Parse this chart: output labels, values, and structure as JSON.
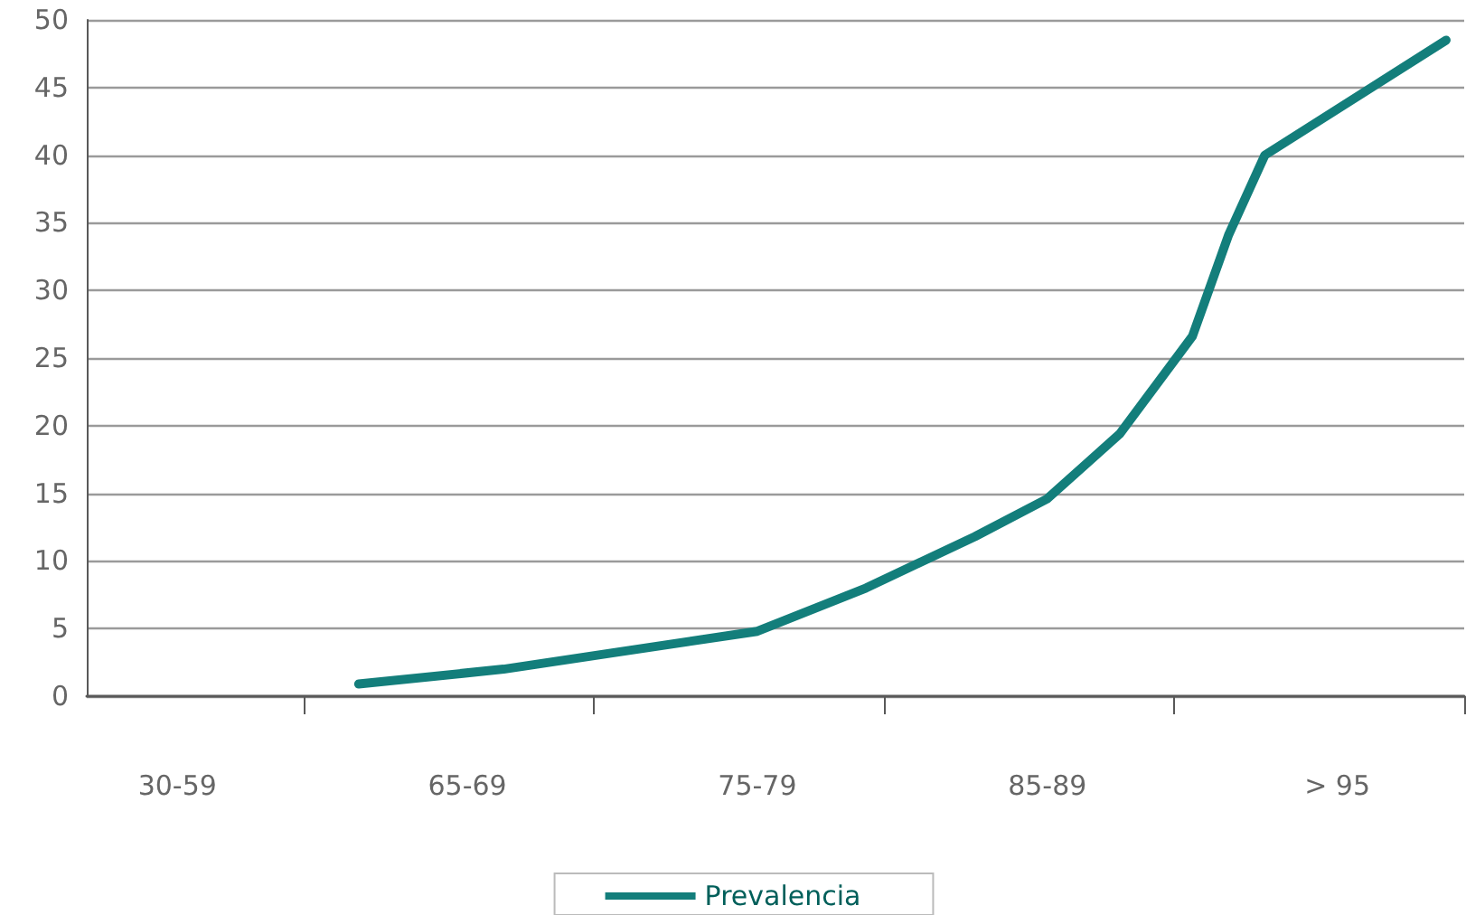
{
  "chart_data": {
    "type": "line",
    "categories": [
      null,
      null,
      "30-59",
      null,
      null,
      null,
      null,
      null,
      null,
      null,
      "65-69",
      null,
      null,
      null,
      null,
      null,
      null,
      null,
      "75-79",
      null,
      null,
      null,
      null,
      null,
      null,
      null,
      "85-89",
      null,
      null,
      null,
      null,
      null,
      null,
      null,
      "> 95",
      null,
      null,
      null
    ],
    "series": [
      {
        "name": "Prevalencia",
        "color": "#137e7b",
        "values": [
          null,
          null,
          null,
          null,
          null,
          null,
          null,
          0.9,
          null,
          null,
          null,
          2.0,
          null,
          null,
          3.2,
          null,
          null,
          null,
          4.8,
          null,
          null,
          8.0,
          null,
          null,
          11.8,
          null,
          14.6,
          null,
          19.4,
          null,
          26.6,
          34.1,
          40.0,
          null,
          null,
          null,
          null,
          48.5
        ]
      }
    ],
    "ylim": [
      0,
      50
    ],
    "yticks": [
      0,
      5,
      10,
      15,
      20,
      25,
      30,
      35,
      40,
      45,
      50
    ],
    "grid": "y",
    "legend": "bottom",
    "marker": "none",
    "line_style": "solid"
  }
}
